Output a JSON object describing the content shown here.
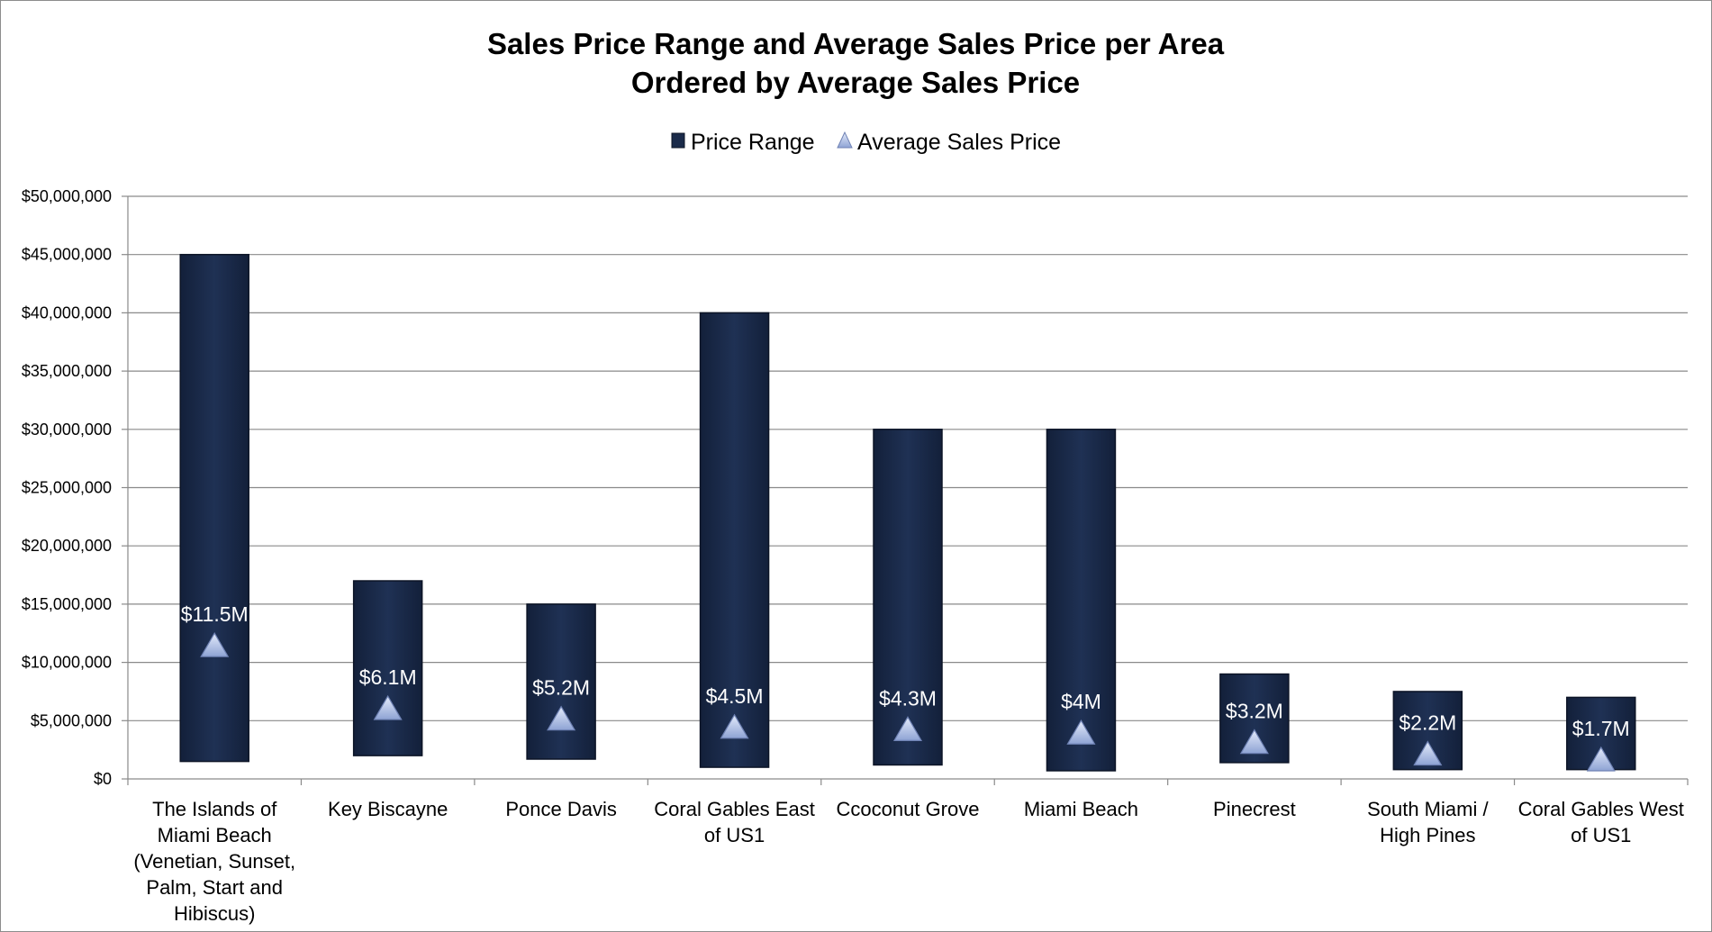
{
  "chart_data": {
    "type": "bar",
    "title": [
      "Sales Price Range and Average Sales Price per Area",
      "Ordered by Average Sales Price"
    ],
    "xlabel": "",
    "ylabel": "",
    "ylim": [
      0,
      50000000
    ],
    "ytick_step": 5000000,
    "ytick_labels": [
      "$0",
      "$5,000,000",
      "$10,000,000",
      "$15,000,000",
      "$20,000,000",
      "$25,000,000",
      "$30,000,000",
      "$35,000,000",
      "$40,000,000",
      "$45,000,000",
      "$50,000,000"
    ],
    "grid": true,
    "legend_position": "top-center",
    "categories": [
      [
        "The Islands of",
        "Miami Beach",
        "(Venetian, Sunset,",
        "Palm, Start and",
        "Hibiscus)"
      ],
      [
        "Key Biscayne"
      ],
      [
        "Ponce Davis"
      ],
      [
        "Coral Gables East",
        "of US1"
      ],
      [
        "Ccoconut Grove"
      ],
      [
        "Miami Beach"
      ],
      [
        "Pinecrest"
      ],
      [
        "South Miami /",
        "High Pines"
      ],
      [
        "Coral Gables West",
        "of US1"
      ]
    ],
    "series": [
      {
        "name": "Price Range",
        "kind": "floating-bar",
        "color": "#1b2b4a",
        "low": [
          1500000,
          2000000,
          1700000,
          1000000,
          1200000,
          700000,
          1400000,
          800000,
          800000
        ],
        "high": [
          45000000,
          17000000,
          15000000,
          40000000,
          30000000,
          30000000,
          9000000,
          7500000,
          7000000
        ]
      },
      {
        "name": "Average Sales Price",
        "kind": "marker-triangle",
        "color": "#a7b8e2",
        "values": [
          11500000,
          6100000,
          5200000,
          4500000,
          4300000,
          4000000,
          3200000,
          2200000,
          1700000
        ],
        "labels": [
          "$11.5M",
          "$6.1M",
          "$5.2M",
          "$4.5M",
          "$4.3M",
          "$4M",
          "$3.2M",
          "$2.2M",
          "$1.7M"
        ]
      }
    ]
  }
}
